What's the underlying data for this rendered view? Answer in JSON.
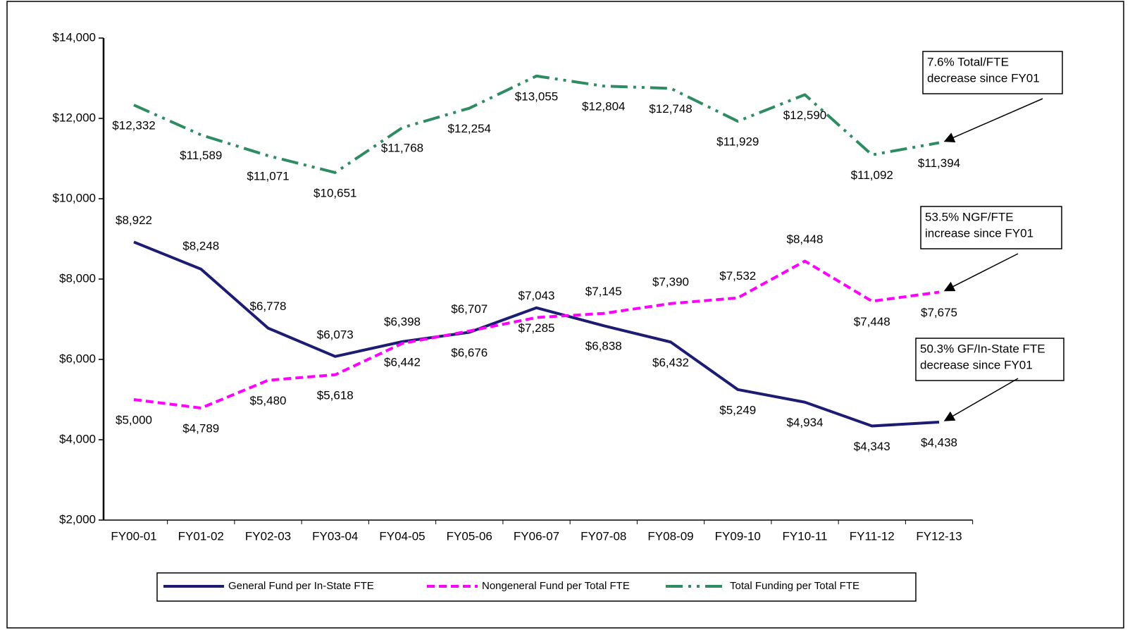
{
  "chart_data": {
    "type": "line",
    "categories": [
      "FY00-01",
      "FY01-02",
      "FY02-03",
      "FY03-04",
      "FY04-05",
      "FY05-06",
      "FY06-07",
      "FY07-08",
      "FY08-09",
      "FY09-10",
      "FY10-11",
      "FY11-12",
      "FY12-13"
    ],
    "series": [
      {
        "name": "General Fund per In-State FTE",
        "color": "#1c1c72",
        "style": "solid",
        "values": [
          8922,
          8248,
          6778,
          6073,
          6442,
          6676,
          7285,
          6838,
          6432,
          5249,
          4934,
          4343,
          4438
        ],
        "value_labels": [
          "$8,922",
          "$8,248",
          "$6,778",
          "$6,073",
          "$6,442",
          "$6,676",
          "$7,285",
          "$6,838",
          "$6,432",
          "$5,249",
          "$4,934",
          "$4,343",
          "$4,438"
        ]
      },
      {
        "name": "Nongeneral Fund per Total FTE",
        "color": "#ff00ff",
        "style": "dashed",
        "values": [
          5000,
          4789,
          5480,
          5618,
          6398,
          6707,
          7043,
          7145,
          7390,
          7532,
          8448,
          7448,
          7675
        ],
        "value_labels": [
          "$5,000",
          "$4,789",
          "$5,480",
          "$5,618",
          "$6,398",
          "$6,707",
          "$7,043",
          "$7,145",
          "$7,390",
          "$7,532",
          "$8,448",
          "$7,448",
          "$7,675"
        ]
      },
      {
        "name": "Total Funding per Total FTE",
        "color": "#2e8b62",
        "style": "dashdotdot",
        "values": [
          12332,
          11589,
          11071,
          10651,
          11768,
          12254,
          13055,
          12804,
          12748,
          11929,
          12590,
          11092,
          11394
        ],
        "value_labels": [
          "$12,332",
          "$11,589",
          "$11,071",
          "$10,651",
          "$11,768",
          "$12,254",
          "$13,055",
          "$12,804",
          "$12,748",
          "$11,929",
          "$12,590",
          "$11,092",
          "$11,394"
        ]
      }
    ],
    "ylim": [
      2000,
      14000
    ],
    "yticks": [
      {
        "value": 2000,
        "label": "$2,000"
      },
      {
        "value": 4000,
        "label": "$4,000"
      },
      {
        "value": 6000,
        "label": "$6,000"
      },
      {
        "value": 8000,
        "label": "$8,000"
      },
      {
        "value": 10000,
        "label": "$10,000"
      },
      {
        "value": 12000,
        "label": "$12,000"
      },
      {
        "value": 14000,
        "label": "$14,000"
      }
    ],
    "annotations": [
      {
        "lines": [
          "7.6% Total/FTE",
          "decrease since FY01"
        ]
      },
      {
        "lines": [
          "53.5% NGF/FTE",
          "increase since FY01"
        ]
      },
      {
        "lines": [
          "50.3% GF/In-State FTE",
          "decrease since FY01"
        ]
      }
    ],
    "legend": "bottom"
  }
}
